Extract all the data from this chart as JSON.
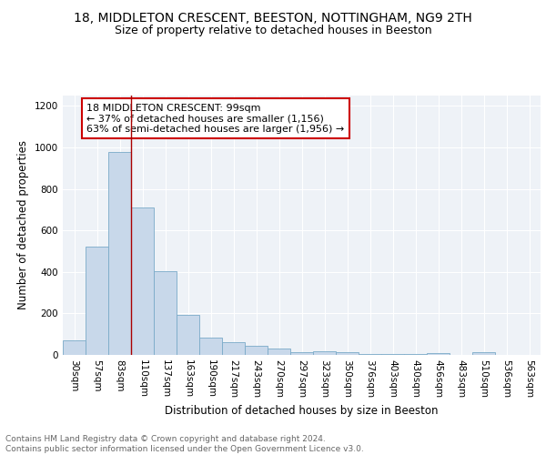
{
  "title1": "18, MIDDLETON CRESCENT, BEESTON, NOTTINGHAM, NG9 2TH",
  "title2": "Size of property relative to detached houses in Beeston",
  "xlabel": "Distribution of detached houses by size in Beeston",
  "ylabel": "Number of detached properties",
  "categories": [
    "30sqm",
    "57sqm",
    "83sqm",
    "110sqm",
    "137sqm",
    "163sqm",
    "190sqm",
    "217sqm",
    "243sqm",
    "270sqm",
    "297sqm",
    "323sqm",
    "350sqm",
    "376sqm",
    "403sqm",
    "430sqm",
    "456sqm",
    "483sqm",
    "510sqm",
    "536sqm",
    "563sqm"
  ],
  "values": [
    70,
    520,
    980,
    710,
    405,
    195,
    85,
    62,
    45,
    32,
    15,
    18,
    15,
    5,
    5,
    5,
    10,
    2,
    12,
    2,
    2
  ],
  "bar_color": "#c8d8ea",
  "bar_edge_color": "#7aaac8",
  "property_line_color": "#aa0000",
  "annotation_line1": "18 MIDDLETON CRESCENT: 99sqm",
  "annotation_line2": "← 37% of detached houses are smaller (1,156)",
  "annotation_line3": "63% of semi-detached houses are larger (1,956) →",
  "annotation_box_color": "#ffffff",
  "annotation_box_edge_color": "#cc0000",
  "ylim": [
    0,
    1250
  ],
  "yticks": [
    0,
    200,
    400,
    600,
    800,
    1000,
    1200
  ],
  "footer_text": "Contains HM Land Registry data © Crown copyright and database right 2024.\nContains public sector information licensed under the Open Government Licence v3.0.",
  "background_color": "#eef2f7",
  "grid_color": "#ffffff",
  "title1_fontsize": 10,
  "title2_fontsize": 9,
  "xlabel_fontsize": 8.5,
  "ylabel_fontsize": 8.5,
  "tick_fontsize": 7.5,
  "annotation_fontsize": 8,
  "footer_fontsize": 6.5
}
